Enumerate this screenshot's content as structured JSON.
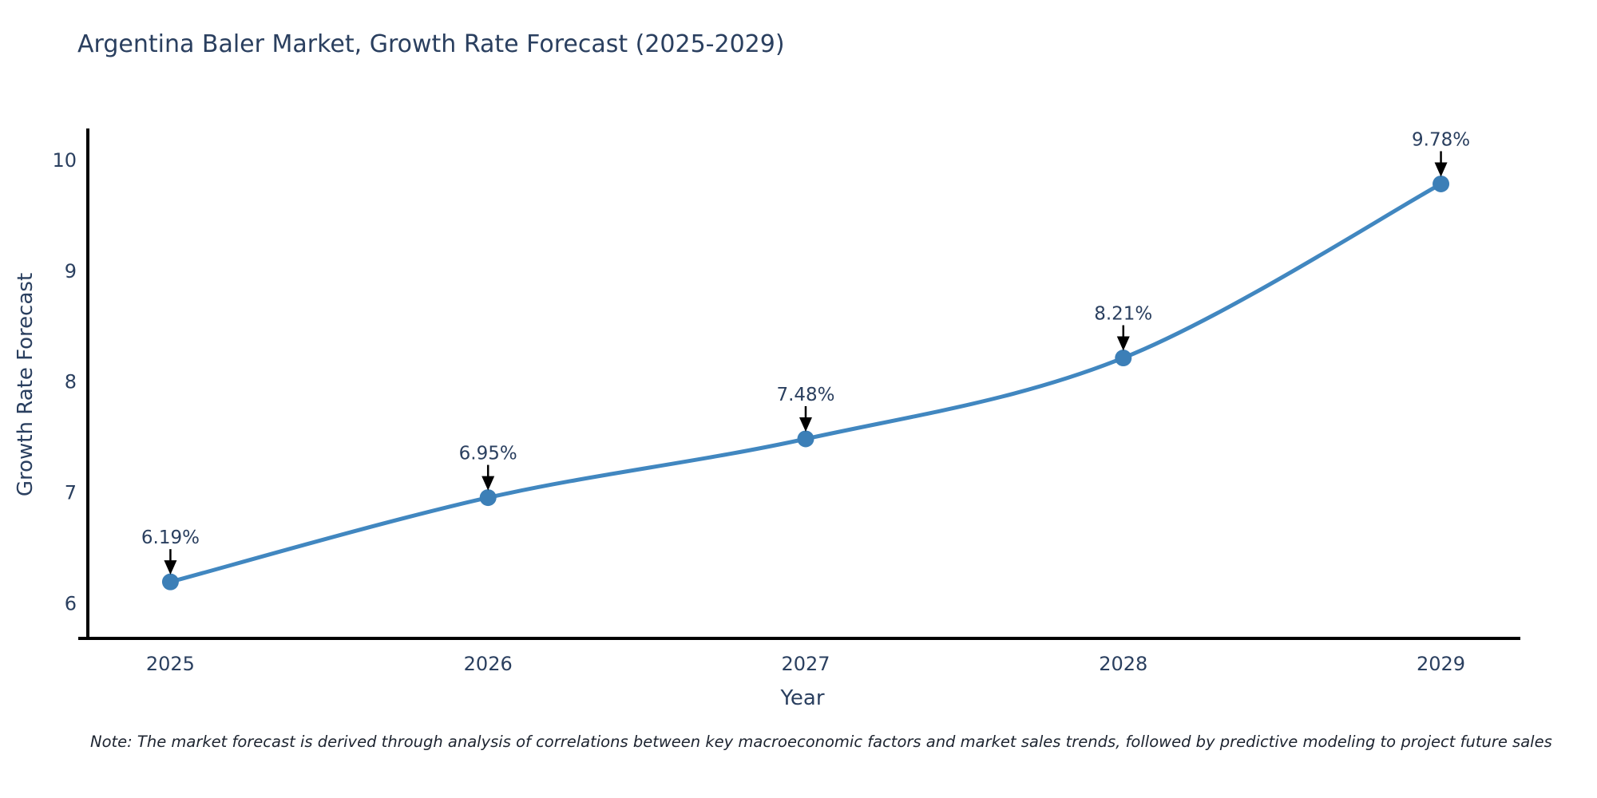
{
  "title": "Argentina Baler Market, Growth Rate Forecast (2025-2029)",
  "footnote": "Note: The market forecast is derived through analysis of correlations between key macroeconomic factors and market sales trends, followed by predictive modeling to project future sales",
  "chart_data": {
    "type": "line",
    "title": "Argentina Baler Market, Growth Rate Forecast (2025-2029)",
    "xlabel": "Year",
    "ylabel": "Growth Rate Forecast",
    "x": [
      2025,
      2026,
      2027,
      2028,
      2029
    ],
    "series": [
      {
        "name": "Growth Rate Forecast",
        "values": [
          6.19,
          6.95,
          7.48,
          8.21,
          9.78
        ],
        "point_labels": [
          "6.19%",
          "6.95%",
          "7.48%",
          "8.21%",
          "9.78%"
        ]
      }
    ],
    "xticks": [
      "2025",
      "2026",
      "2027",
      "2028",
      "2029"
    ],
    "yticks": [
      "6",
      "7",
      "8",
      "9",
      "10"
    ],
    "ytick_values": [
      6,
      7,
      8,
      9,
      10
    ],
    "xlim": [
      2024.74,
      2029.25
    ],
    "ylim": [
      5.68,
      10.28
    ],
    "grid": false,
    "legend_position": "none",
    "line_shape": "spline",
    "annotation_style": "label-with-down-arrow",
    "colors": {
      "line": "#4187c0",
      "marker": "#3c7fb7",
      "annotation_arrow": "#000000",
      "text": "#2a3f5f",
      "axis": "#000000",
      "background": "#ffffff"
    }
  }
}
